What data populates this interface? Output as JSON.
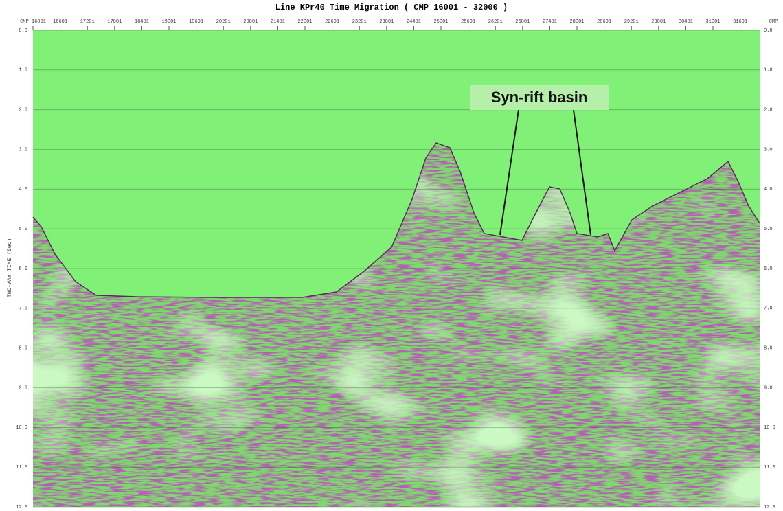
{
  "header": {
    "title": "Line KPr40 Time Migration ( CMP 16001 - 32000 )"
  },
  "x_axis": {
    "labels": [
      "CMP 16001",
      "16601",
      "17201",
      "17801",
      "18401",
      "19001",
      "19601",
      "20201",
      "20801",
      "21401",
      "22001",
      "22601",
      "23201",
      "23801",
      "24401",
      "25001",
      "25601",
      "26201",
      "26801",
      "27401",
      "28001",
      "28601",
      "29201",
      "29801",
      "30401",
      "31001",
      "31601"
    ],
    "end_label": "CMP"
  },
  "y_axis": {
    "title": "TWO-WAY TIME (Sec)",
    "labels": [
      "0.0",
      "1.0",
      "2.0",
      "3.0",
      "4.0",
      "5.0",
      "6.0",
      "7.0",
      "8.0",
      "9.0",
      "10.0",
      "11.0",
      "12.0"
    ]
  },
  "annotation": {
    "text": "Syn-rift basin"
  }
}
